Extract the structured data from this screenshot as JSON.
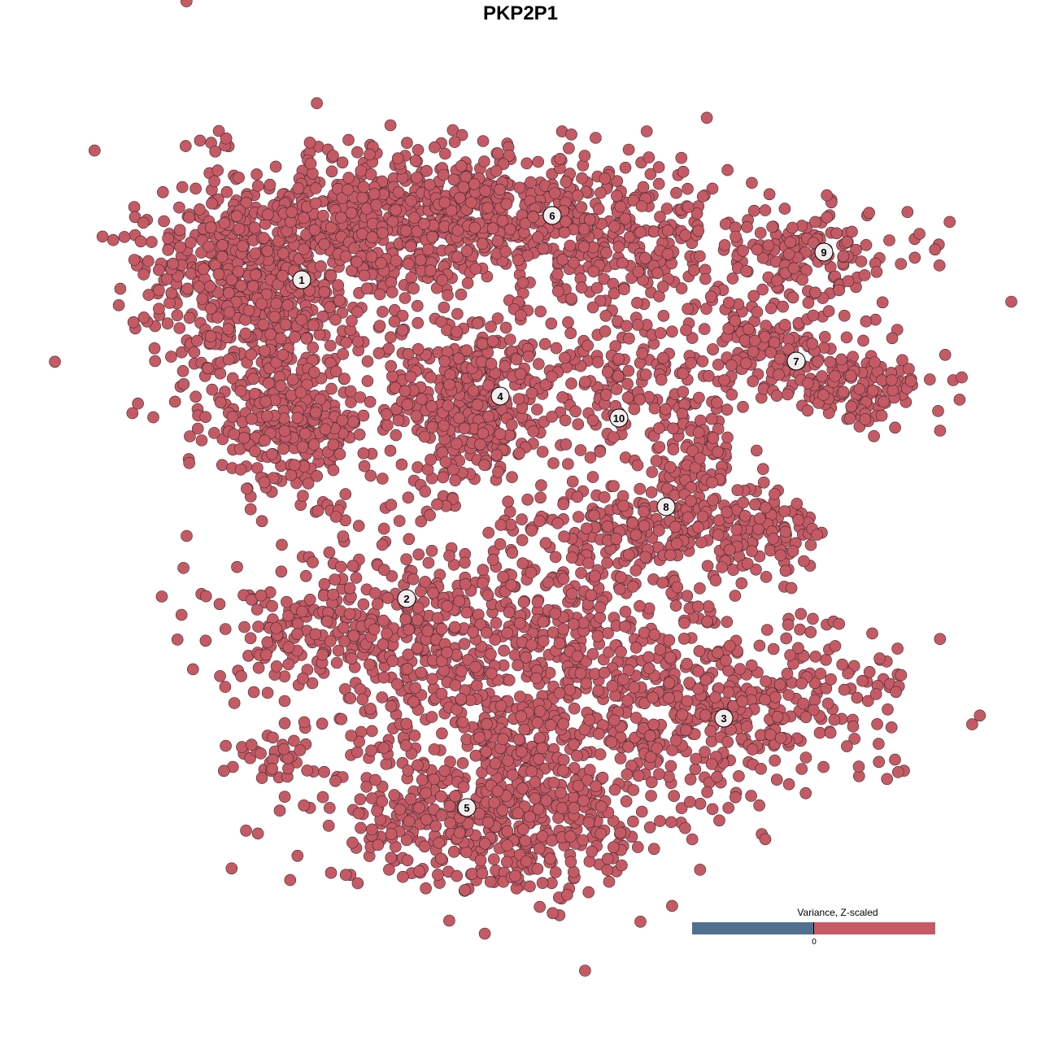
{
  "chart_data": {
    "type": "scatter",
    "title": "PKP2P1",
    "xlabel": "",
    "ylabel": "",
    "axes_visible": false,
    "grid": false,
    "point_color": "#c55a65",
    "point_outline": "#3a2a2c",
    "clusters": [
      {
        "label": "1",
        "center": [
          -26.9,
          29.6
        ]
      },
      {
        "label": "2",
        "center": [
          -14.0,
          -9.6
        ]
      },
      {
        "label": "3",
        "center": [
          25.0,
          -24.3
        ]
      },
      {
        "label": "4",
        "center": [
          -2.5,
          15.3
        ]
      },
      {
        "label": "5",
        "center": [
          -6.6,
          -35.3
        ]
      },
      {
        "label": "6",
        "center": [
          3.9,
          37.5
        ]
      },
      {
        "label": "7",
        "center": [
          33.9,
          19.6
        ]
      },
      {
        "label": "8",
        "center": [
          17.9,
          1.7
        ]
      },
      {
        "label": "9",
        "center": [
          37.3,
          33.0
        ]
      },
      {
        "label": "10",
        "center": [
          12.1,
          12.6
        ]
      }
    ],
    "legend": {
      "title": "Variance, Z-scaled",
      "tick_label": "0",
      "low_color": "#51708f",
      "high_color": "#c55a65",
      "placement": "bottom-right"
    }
  }
}
